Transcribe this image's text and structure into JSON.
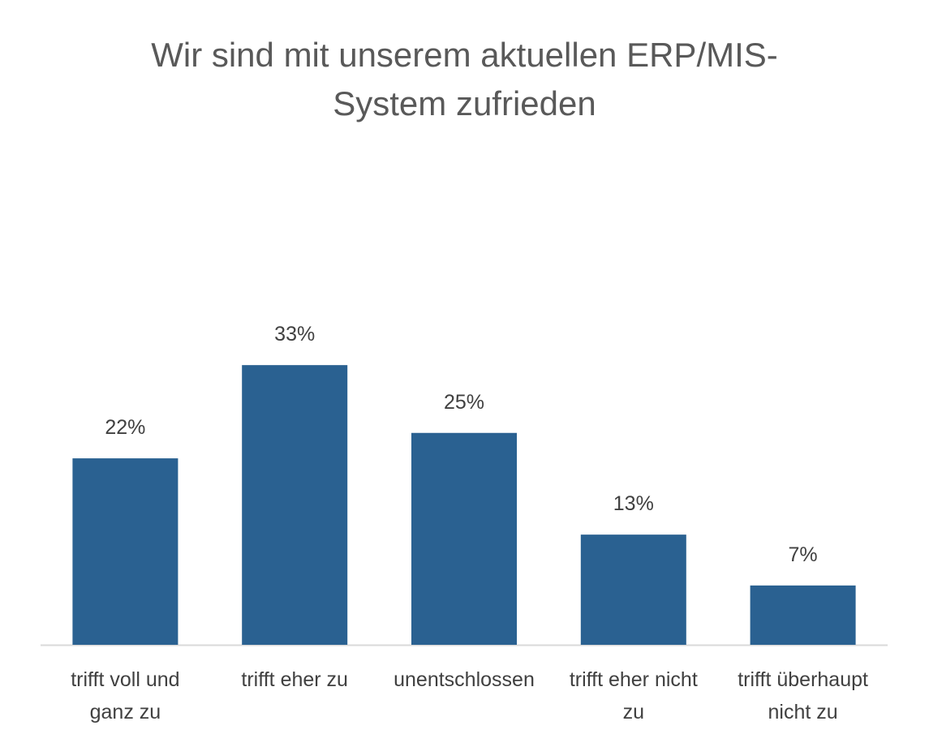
{
  "chart_data": {
    "type": "bar",
    "title": "Wir sind mit unserem aktuellen ERP/MIS-System zufrieden",
    "title_lines": [
      "Wir sind mit unserem aktuellen ERP/MIS-",
      "System zufrieden"
    ],
    "categories": [
      "trifft voll und ganz zu",
      "trifft eher zu",
      "unentschlossen",
      "trifft eher nicht zu",
      "trifft überhaupt nicht zu"
    ],
    "category_lines": [
      [
        "trifft voll und",
        "ganz zu"
      ],
      [
        "trifft eher zu"
      ],
      [
        "unentschlossen"
      ],
      [
        "trifft eher nicht",
        "zu"
      ],
      [
        "trifft überhaupt",
        "nicht zu"
      ]
    ],
    "values": [
      22,
      33,
      25,
      13,
      7
    ],
    "data_labels": [
      "22%",
      "33%",
      "25%",
      "13%",
      "7%"
    ],
    "bar_color": "#2a6191",
    "axis_color": "#d9d9d9",
    "xlabel": "",
    "ylabel": "",
    "grid": false,
    "legend": "none"
  }
}
